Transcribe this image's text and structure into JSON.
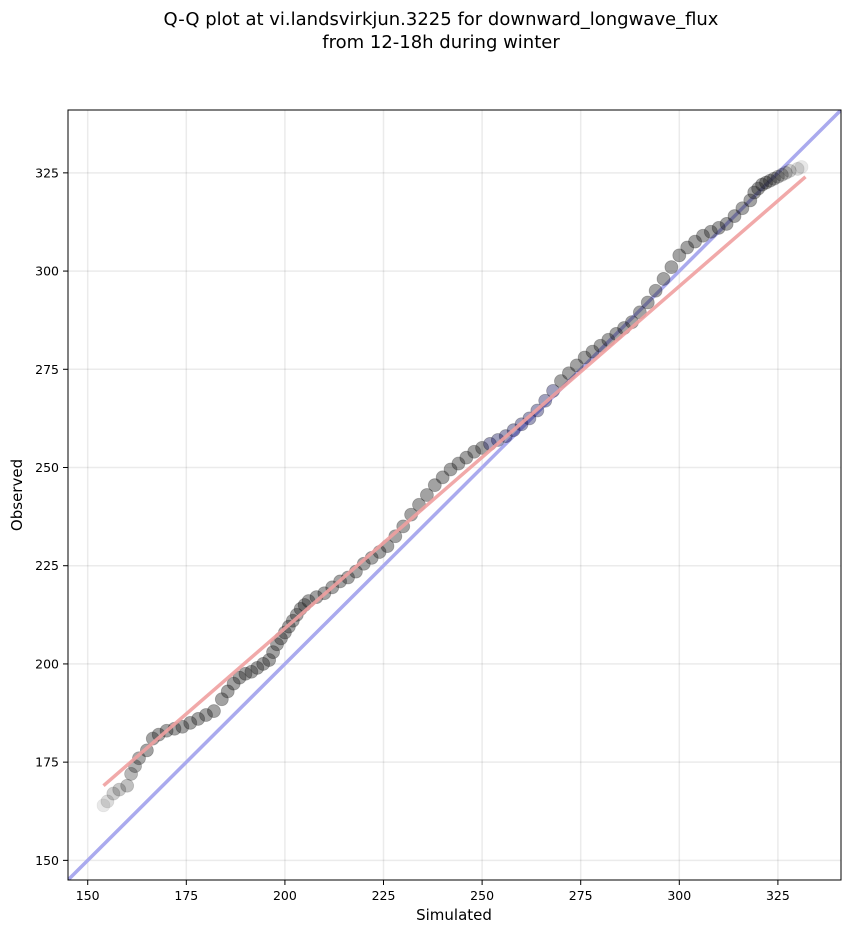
{
  "chart_data": {
    "type": "scatter",
    "title_lines": [
      "Q-Q plot at vi.landsvirkjun.3225 for downward_longwave_flux",
      "from 12-18h during winter"
    ],
    "xlabel": "Simulated",
    "ylabel": "Observed",
    "xlim": [
      145,
      341
    ],
    "ylim": [
      145,
      341
    ],
    "x_ticks": [
      150,
      175,
      200,
      225,
      250,
      275,
      300,
      325
    ],
    "y_ticks": [
      150,
      175,
      200,
      225,
      250,
      275,
      300,
      325
    ],
    "grid": true,
    "colors": {
      "points": "#222222",
      "identity_line": "#aaaaee",
      "fit_line": "#f0a0a0",
      "center_points": "#1a1a60"
    },
    "identity_line": {
      "x": [
        145,
        341
      ],
      "y": [
        145,
        341
      ]
    },
    "fit_line": {
      "x": [
        154,
        332
      ],
      "y": [
        169,
        324
      ]
    },
    "points": {
      "x": [
        154,
        155,
        156.5,
        158,
        160,
        161,
        162,
        163,
        165,
        166.5,
        168,
        170,
        172,
        174,
        176,
        178,
        180,
        182,
        184,
        185.5,
        187,
        188.5,
        190,
        191.5,
        193,
        194.5,
        196,
        197,
        198,
        199,
        200,
        201,
        202,
        203,
        204,
        205,
        206,
        208,
        210,
        212,
        214,
        216,
        218,
        220,
        222,
        224,
        226,
        228,
        230,
        232,
        234,
        236,
        238,
        240,
        242,
        244,
        246,
        248,
        250,
        252,
        254,
        256,
        258,
        260,
        262,
        264,
        266,
        268,
        270,
        272,
        274,
        276,
        278,
        280,
        282,
        284,
        286,
        288,
        290,
        292,
        294,
        296,
        298,
        300,
        302,
        304,
        306,
        308,
        310,
        312,
        314,
        316,
        318,
        319,
        320,
        321,
        322,
        323,
        324,
        325,
        326,
        327,
        328,
        330,
        331
      ],
      "y": [
        164,
        165,
        167,
        168,
        169,
        172,
        174,
        176,
        178,
        181,
        182,
        183,
        183.5,
        184,
        185,
        186,
        187,
        188,
        191,
        193,
        195,
        196.5,
        197.5,
        198,
        199,
        200,
        201,
        203,
        205,
        206.5,
        208,
        209.5,
        211,
        212.5,
        214,
        215,
        216,
        217,
        218,
        219.5,
        221,
        222,
        223.5,
        225.5,
        227,
        228.5,
        230,
        232.5,
        235,
        238,
        240.5,
        243,
        245.5,
        247.5,
        249.5,
        251,
        252.5,
        254,
        255,
        256,
        257,
        258,
        259.5,
        261,
        262.5,
        264.5,
        267,
        269.5,
        272,
        274,
        276,
        278,
        279.5,
        281,
        282.5,
        284,
        285.5,
        287,
        289.5,
        292,
        295,
        298,
        301,
        304,
        306,
        307.5,
        309,
        310,
        311,
        312,
        314,
        316,
        318,
        320,
        321,
        322,
        322.5,
        323,
        323.5,
        324,
        324.5,
        325,
        325.5,
        326,
        326.5
      ]
    }
  }
}
